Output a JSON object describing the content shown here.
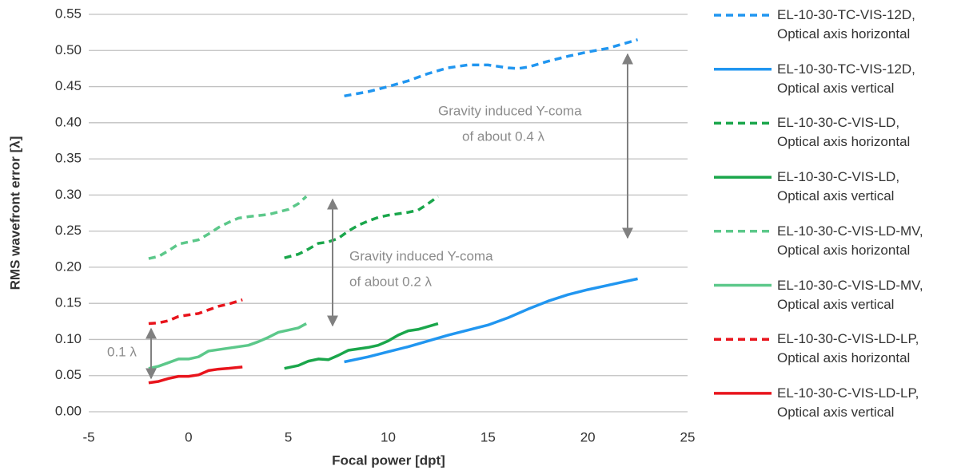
{
  "chart_data": {
    "type": "line",
    "xlabel": "Focal power [dpt]",
    "ylabel": "RMS wavefront error [λ]",
    "xlim": [
      -5,
      25
    ],
    "xticks": [
      -5,
      0,
      5,
      10,
      15,
      20,
      25
    ],
    "ylim": [
      0,
      0.55
    ],
    "yticks": [
      {
        "value": 0,
        "label": "0.00"
      },
      {
        "value": 0.05,
        "label": "0.05"
      },
      {
        "value": 0.1,
        "label": "0.10"
      },
      {
        "value": 0.15,
        "label": "0.15"
      },
      {
        "value": 0.2,
        "label": "0.20"
      },
      {
        "value": 0.25,
        "label": "0.25"
      },
      {
        "value": 0.3,
        "label": "0.30"
      },
      {
        "value": 0.35,
        "label": "0.35"
      },
      {
        "value": 0.4,
        "label": "0.40"
      },
      {
        "value": 0.45,
        "label": "0.45"
      },
      {
        "value": 0.5,
        "label": "0.50"
      },
      {
        "value": 0.55,
        "label": "0.55"
      }
    ],
    "grid": true,
    "legend": "right",
    "annotations": [
      "Gravity induced Y-coma",
      "of about 0.4 λ",
      "Gravity induced Y-coma",
      "of about 0.2 λ",
      "0.1 λ"
    ],
    "series": [
      {
        "name": "EL-10-30-TC-VIS-12D,\nOptical axis horizontal",
        "color": "#2196f0",
        "dashed": true,
        "x": [
          7.8,
          9,
          10,
          11,
          12,
          13,
          14,
          15,
          16,
          16.5,
          17,
          18,
          19,
          20,
          21,
          22.5
        ],
        "values": [
          0.437,
          0.443,
          0.45,
          0.458,
          0.468,
          0.476,
          0.48,
          0.48,
          0.476,
          0.475,
          0.477,
          0.485,
          0.492,
          0.498,
          0.503,
          0.515
        ]
      },
      {
        "name": "EL-10-30-TC-VIS-12D,\nOptical axis vertical",
        "color": "#2196f0",
        "dashed": false,
        "x": [
          7.8,
          9,
          10,
          11,
          12,
          13,
          14,
          15,
          16,
          17,
          18,
          19,
          20,
          21,
          22.5
        ],
        "values": [
          0.069,
          0.076,
          0.083,
          0.09,
          0.098,
          0.106,
          0.113,
          0.12,
          0.13,
          0.142,
          0.153,
          0.162,
          0.169,
          0.175,
          0.184
        ]
      },
      {
        "name": "EL-10-30-C-VIS-LD,\nOptical axis horizontal",
        "color": "#1aa64b",
        "dashed": true,
        "x": [
          4.8,
          5.5,
          6,
          6.5,
          7,
          7.5,
          8,
          8.5,
          9,
          9.5,
          10,
          11,
          11.5,
          12,
          12.5
        ],
        "values": [
          0.213,
          0.218,
          0.225,
          0.233,
          0.235,
          0.24,
          0.25,
          0.258,
          0.264,
          0.269,
          0.272,
          0.276,
          0.279,
          0.288,
          0.298
        ]
      },
      {
        "name": "EL-10-30-C-VIS-LD,\nOptical axis vertical",
        "color": "#1aa64b",
        "dashed": false,
        "x": [
          4.8,
          5.5,
          6,
          6.5,
          7,
          7.5,
          8,
          9,
          9.5,
          10,
          10.5,
          11,
          11.5,
          12,
          12.5
        ],
        "values": [
          0.06,
          0.064,
          0.07,
          0.073,
          0.072,
          0.078,
          0.085,
          0.089,
          0.092,
          0.098,
          0.106,
          0.112,
          0.114,
          0.118,
          0.122
        ]
      },
      {
        "name": "EL-10-30-C-VIS-LD-MV,\nOptical axis horizontal",
        "color": "#5cc88a",
        "dashed": true,
        "x": [
          -2,
          -1.5,
          -1,
          -0.5,
          0,
          0.5,
          1,
          1.5,
          2,
          2.5,
          3,
          4,
          5,
          5.5,
          5.9
        ],
        "values": [
          0.212,
          0.215,
          0.223,
          0.232,
          0.235,
          0.238,
          0.246,
          0.255,
          0.262,
          0.268,
          0.27,
          0.273,
          0.28,
          0.288,
          0.298
        ]
      },
      {
        "name": "EL-10-30-C-VIS-LD-MV,\nOptical axis vertical",
        "color": "#5cc88a",
        "dashed": false,
        "x": [
          -2,
          -1.5,
          -1,
          -0.5,
          0,
          0.5,
          1,
          2,
          3,
          3.5,
          4,
          4.5,
          5,
          5.5,
          5.9
        ],
        "values": [
          0.06,
          0.063,
          0.068,
          0.073,
          0.073,
          0.076,
          0.084,
          0.088,
          0.092,
          0.097,
          0.103,
          0.11,
          0.113,
          0.116,
          0.122
        ]
      },
      {
        "name": "EL-10-30-C-VIS-LD-LP,\nOptical axis horizontal",
        "color": "#e8141c",
        "dashed": true,
        "x": [
          -2,
          -1.5,
          -1,
          -0.5,
          0,
          0.5,
          1,
          1.5,
          2,
          2.7
        ],
        "values": [
          0.122,
          0.123,
          0.126,
          0.132,
          0.134,
          0.136,
          0.141,
          0.146,
          0.149,
          0.155
        ]
      },
      {
        "name": "EL-10-30-C-VIS-LD-LP,\nOptical axis vertical",
        "color": "#e8141c",
        "dashed": false,
        "x": [
          -2,
          -1.5,
          -1,
          -0.5,
          0,
          0.5,
          1,
          1.5,
          2,
          2.7
        ],
        "values": [
          0.04,
          0.042,
          0.046,
          0.049,
          0.049,
          0.051,
          0.057,
          0.059,
          0.06,
          0.062
        ]
      }
    ]
  }
}
